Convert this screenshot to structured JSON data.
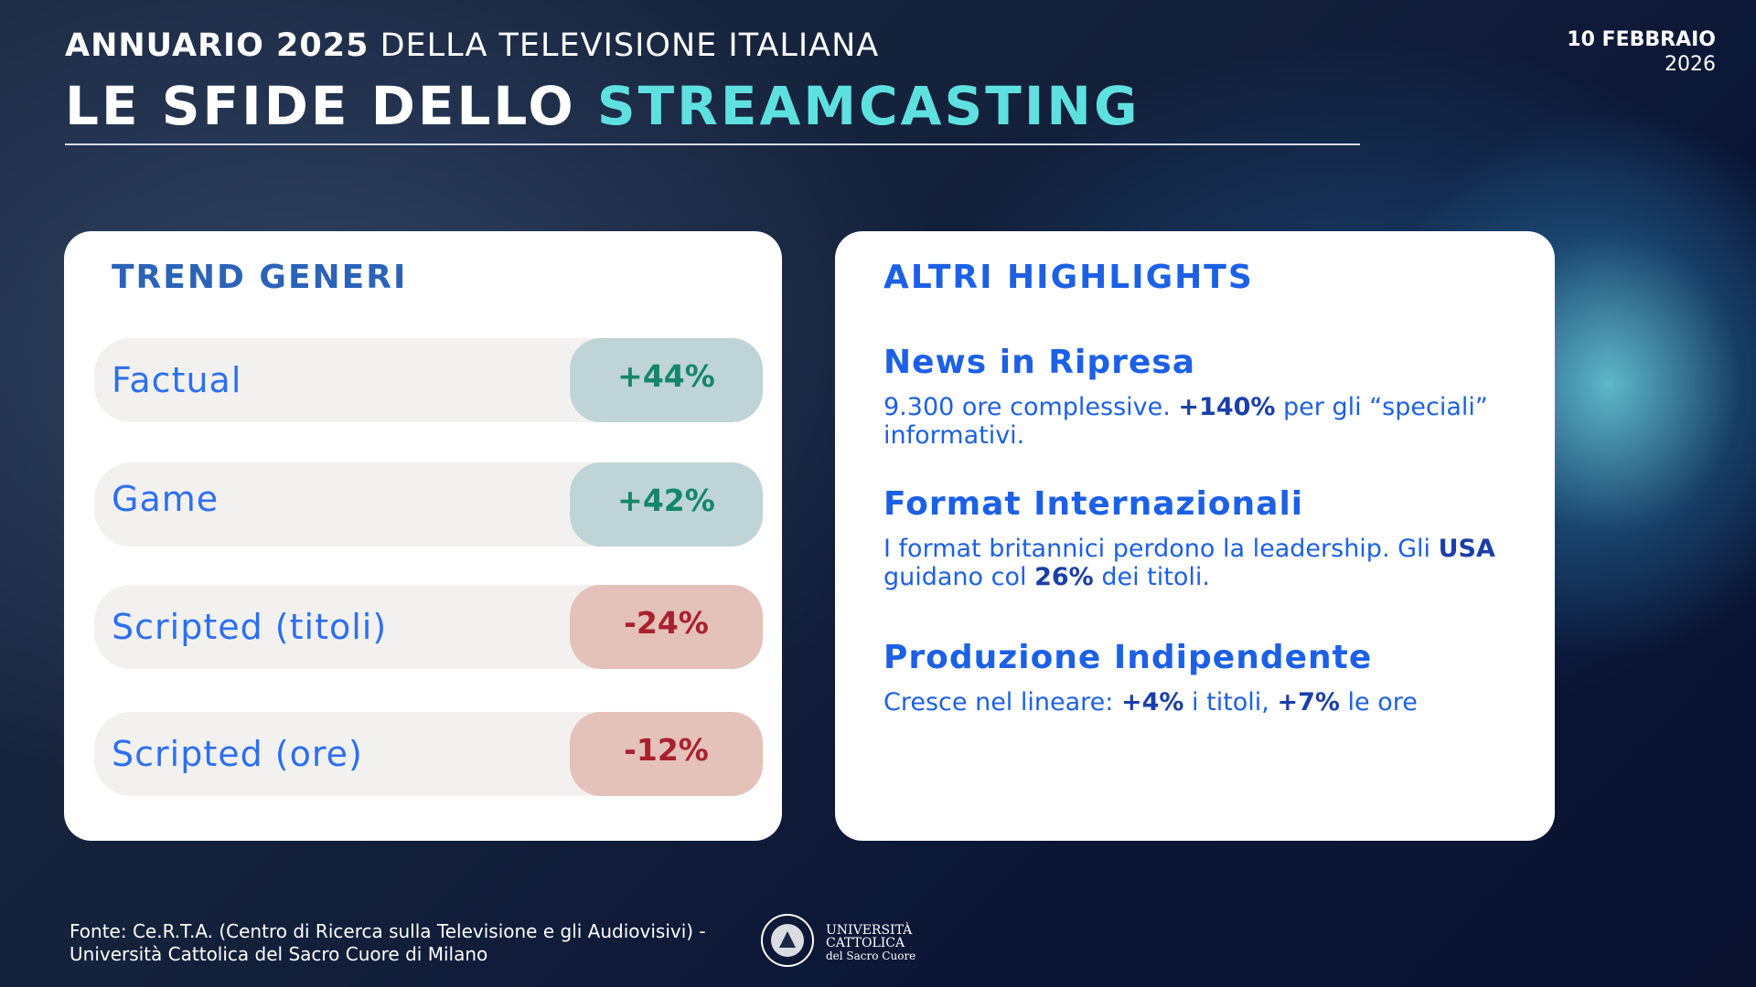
{
  "header": {
    "title_bold": "ANNUARIO 2025",
    "title_rest": "DELLA TELEVISIONE ITALIANA",
    "headline": "LE SFIDE DELLO",
    "headline_accent": "STREAMCASTING",
    "date": "10 FEBBRAIO",
    "year": "2026"
  },
  "trend": {
    "title": "TREND GENERI",
    "rows": [
      {
        "label": "Factual",
        "value": "+44%"
      },
      {
        "label": "Game",
        "value": "+42%"
      },
      {
        "label": "Scripted (titoli)",
        "value": "-24%"
      },
      {
        "label": "Scripted (ore)",
        "value": "-12%"
      }
    ]
  },
  "highlights": {
    "title": "ALTRI HIGHLIGHTS",
    "items": [
      {
        "heading": "News in Ripresa",
        "body": [
          "9.300 ore complessive. ",
          "+140%",
          " per gli “speciali” informativi."
        ]
      },
      {
        "heading": "Format Internazionali",
        "body": [
          "I format britannici perdono la leadership. Gli ",
          "USA",
          " guidano col ",
          "26%",
          " dei titoli."
        ]
      },
      {
        "heading": "Produzione Indipendente",
        "body": [
          "Cresce nel lineare: ",
          "+4%",
          " i titoli, ",
          "+7%",
          " le ore"
        ]
      }
    ]
  },
  "footer": {
    "source_line1": "Fonte: Ce.R.T.A. (Centro di Ricerca sulla Televisione e gli Audiovisivi) -",
    "source_line2": "Università Cattolica del Sacro Cuore di Milano",
    "logo_line1": "UNIVERSITÀ",
    "logo_line2": "CATTOLICA",
    "logo_line3": "del Sacro Cuore"
  }
}
